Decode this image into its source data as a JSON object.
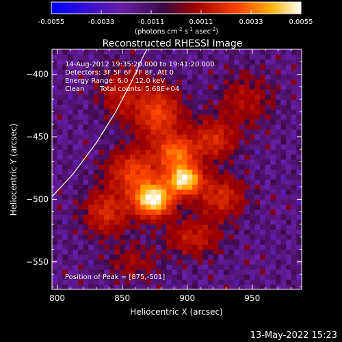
{
  "chart_data": {
    "type": "heatmap",
    "title": "Reconstructed RHESSI Image",
    "xlabel": "Heliocentric X (arcsec)",
    "ylabel": "Heliocentric Y (arcsec)",
    "xlim": [
      796,
      988
    ],
    "ylim": [
      -572,
      -380
    ],
    "x_ticks": [
      800,
      850,
      900,
      950
    ],
    "y_ticks": [
      -400,
      -450,
      -500,
      -550
    ],
    "colorbar": {
      "min": -0.0055,
      "max": 0.0055,
      "ticks": [
        "-0.0055",
        "-0.0033",
        "-0.0011",
        "0.0011",
        "0.0033",
        "0.0055"
      ],
      "label_prefix": "(photons cm",
      "label_exp1": "-2",
      "label_mid": " s",
      "label_exp2": "-1",
      "label_mid2": " asec",
      "label_exp3": "-2",
      "label_suffix": ")"
    },
    "annotations": {
      "time_range": "14-Aug-2012 19:35:20.000 to 19:41:20.000",
      "detectors": "Detectors: 3F 5F 6F 7F 8F, Att 0",
      "energy": "Energy Range: 6.0 - 12.0 keV",
      "clean_label": "Clean",
      "total_counts": "Total counts: 5.68E+04",
      "peak": "Position of Peak = [875,-501]"
    },
    "peak_position": [
      875,
      -501
    ],
    "sources": [
      {
        "x": 874,
        "y": -500,
        "amp": 1.0,
        "sx": 10,
        "sy": 9
      },
      {
        "x": 898,
        "y": -484,
        "amp": 0.95,
        "sx": 9,
        "sy": 8
      },
      {
        "x": 892,
        "y": -463,
        "amp": 0.55,
        "sx": 10,
        "sy": 9
      },
      {
        "x": 878,
        "y": -432,
        "amp": 0.45,
        "sx": 12,
        "sy": 15
      },
      {
        "x": 860,
        "y": -478,
        "amp": 0.45,
        "sx": 14,
        "sy": 12
      },
      {
        "x": 920,
        "y": -452,
        "amp": 0.35,
        "sx": 12,
        "sy": 11
      },
      {
        "x": 926,
        "y": -498,
        "amp": 0.35,
        "sx": 12,
        "sy": 11
      },
      {
        "x": 838,
        "y": -510,
        "amp": 0.35,
        "sx": 12,
        "sy": 12
      },
      {
        "x": 905,
        "y": -530,
        "amp": 0.28,
        "sx": 14,
        "sy": 10
      },
      {
        "x": 850,
        "y": -415,
        "amp": 0.25,
        "sx": 12,
        "sy": 14
      },
      {
        "x": 945,
        "y": -420,
        "amp": 0.2,
        "sx": 14,
        "sy": 14
      },
      {
        "x": 858,
        "y": -550,
        "amp": 0.15,
        "sx": 14,
        "sy": 10
      }
    ],
    "limb": [
      [
        787,
        -508
      ],
      [
        812,
        -480
      ],
      [
        830,
        -455
      ],
      [
        845,
        -430
      ],
      [
        858,
        -404
      ],
      [
        866,
        -386
      ],
      [
        870,
        -378
      ]
    ]
  },
  "footer": {
    "date": "13-May-2022 15:23"
  }
}
